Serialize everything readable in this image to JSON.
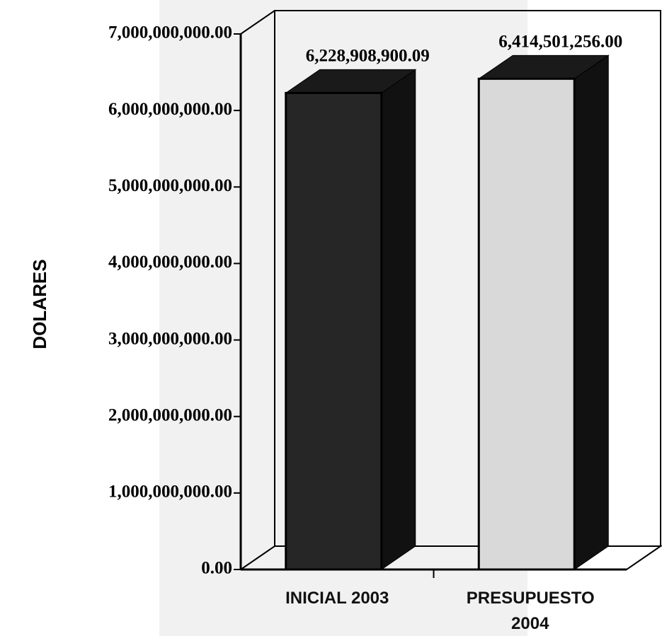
{
  "chart_data": {
    "type": "bar3d",
    "y_label": "DOLARES",
    "categories": [
      "INICIAL 2003",
      "PRESUPUESTO 2004"
    ],
    "values": [
      6228908900.09,
      6414501256.0
    ],
    "value_labels": [
      "6,228,908,900.09",
      "6,414,501,256.00"
    ],
    "colors": [
      "#262626",
      "#d9d9d9"
    ],
    "ylim": [
      0,
      7000000000
    ],
    "yticks": [
      {
        "value": 0,
        "label": "0.00"
      },
      {
        "value": 1000000000,
        "label": "1,000,000,000.00"
      },
      {
        "value": 2000000000,
        "label": "2,000,000,000.00"
      },
      {
        "value": 3000000000,
        "label": "3,000,000,000.00"
      },
      {
        "value": 4000000000,
        "label": "4,000,000,000.00"
      },
      {
        "value": 5000000000,
        "label": "5,000,000,000.00"
      },
      {
        "value": 6000000000,
        "label": "6,000,000,000.00"
      },
      {
        "value": 7000000000,
        "label": "7,000,000,000.00"
      }
    ]
  }
}
